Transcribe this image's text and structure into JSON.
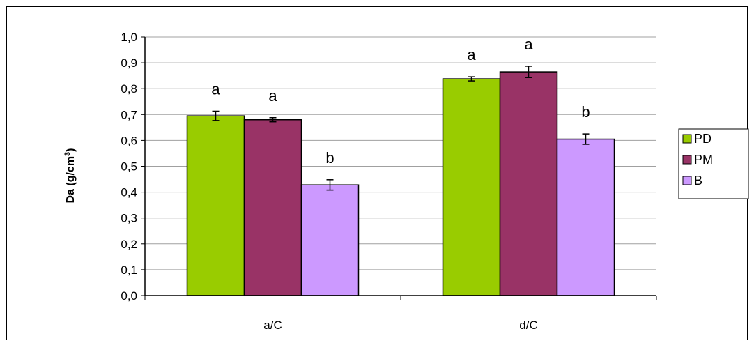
{
  "chart_data": {
    "type": "bar",
    "categories": [
      "a/C",
      "d/C"
    ],
    "ylabel_main": "Da (g/cm",
    "ylabel_sup": "3",
    "ylabel_end": ")",
    "ylim": [
      0,
      1.0
    ],
    "yticks": [
      "0,0",
      "0,1",
      "0,2",
      "0,3",
      "0,4",
      "0,5",
      "0,6",
      "0,7",
      "0,8",
      "0,9",
      "1,0"
    ],
    "grid": true,
    "legend_position": "right",
    "series": [
      {
        "name": "PD",
        "color": "#99cc00",
        "values": [
          0.695,
          0.838
        ],
        "errors": [
          0.018,
          0.008
        ],
        "letters": [
          "a",
          "a"
        ]
      },
      {
        "name": "PM",
        "color": "#993366",
        "values": [
          0.68,
          0.865
        ],
        "errors": [
          0.008,
          0.022
        ],
        "letters": [
          "a",
          "a"
        ]
      },
      {
        "name": "B",
        "color": "#cc99ff",
        "values": [
          0.428,
          0.605
        ],
        "errors": [
          0.02,
          0.02
        ],
        "letters": [
          "b",
          "b"
        ]
      }
    ]
  }
}
